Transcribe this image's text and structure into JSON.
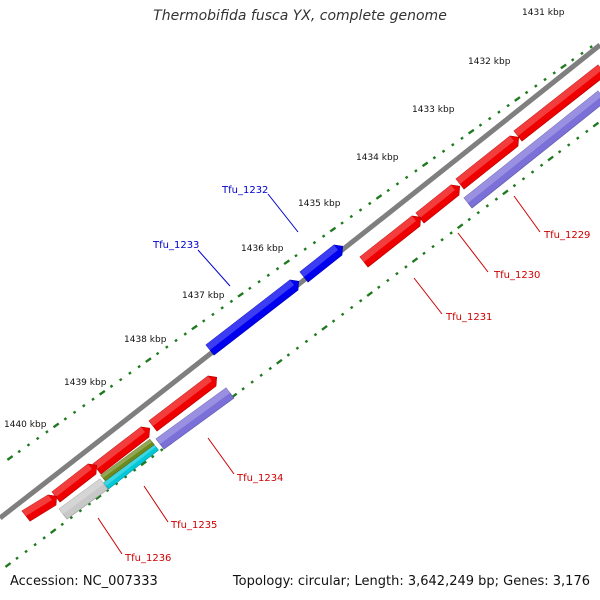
{
  "title": "Thermobifida fusca YX, complete genome",
  "footer": {
    "accession": "Accession: NC_007333",
    "summary": "Topology: circular; Length: 3,642,249 bp; Genes: 3,176"
  },
  "colors": {
    "backbone": "#7f7f7f",
    "tick": "#1f7a1f",
    "forward_gene": "#ee0000",
    "reverse_gene": "#7b6fd8",
    "highlight_gene": "#0000ee",
    "highlight_label": "#0000cc",
    "gene_label": "#cc0000",
    "tick_label": "#111111"
  },
  "ticks": [
    "1431 kbp",
    "1432 kbp",
    "1433 kbp",
    "1434 kbp",
    "1435 kbp",
    "1436 kbp",
    "1437 kbp",
    "1438 kbp",
    "1439 kbp",
    "1440 kbp"
  ],
  "labels": [
    {
      "name": "Tfu_1229",
      "kind": "gene"
    },
    {
      "name": "Tfu_1230",
      "kind": "gene"
    },
    {
      "name": "Tfu_1231",
      "kind": "gene"
    },
    {
      "name": "Tfu_1232",
      "kind": "highlight"
    },
    {
      "name": "Tfu_1233",
      "kind": "highlight"
    },
    {
      "name": "Tfu_1234",
      "kind": "gene"
    },
    {
      "name": "Tfu_1235",
      "kind": "gene"
    },
    {
      "name": "Tfu_1236",
      "kind": "gene"
    }
  ]
}
